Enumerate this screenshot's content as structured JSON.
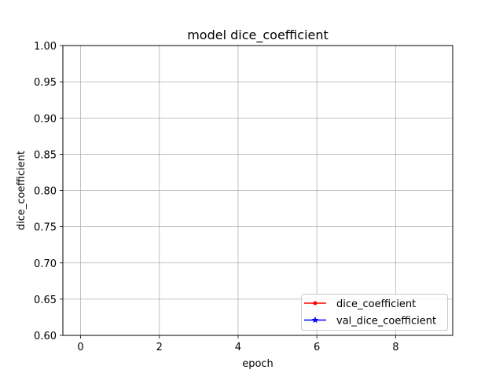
{
  "chart_data": {
    "type": "line",
    "title": "model dice_coefficient",
    "xlabel": "epoch",
    "ylabel": "dice_coefficient",
    "xlim": [
      -0.45,
      9.45
    ],
    "ylim": [
      0.6,
      1.0
    ],
    "xticks": [
      0,
      2,
      4,
      6,
      8
    ],
    "xtick_labels": [
      "0",
      "2",
      "4",
      "6",
      "8"
    ],
    "yticks": [
      0.6,
      0.65,
      0.7,
      0.75,
      0.8,
      0.85,
      0.9,
      0.95,
      1.0
    ],
    "ytick_labels": [
      "0.60",
      "0.65",
      "0.70",
      "0.75",
      "0.80",
      "0.85",
      "0.90",
      "0.95",
      "1.00"
    ],
    "grid": true,
    "legend_position": "lower-right",
    "series": [
      {
        "name": "dice_coefficient",
        "color": "#ff0000",
        "marker": "circle",
        "x": [],
        "y": []
      },
      {
        "name": "val_dice_coefficient",
        "color": "#0000ff",
        "marker": "star",
        "x": [],
        "y": []
      }
    ]
  }
}
